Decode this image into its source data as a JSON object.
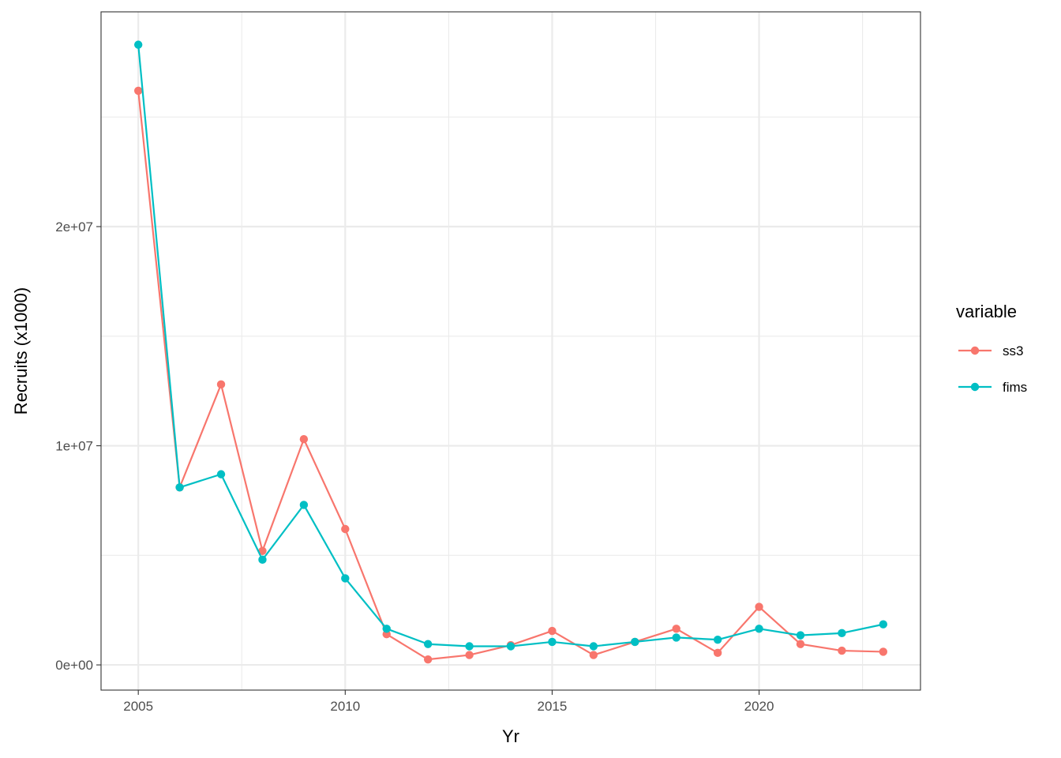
{
  "chart_data": {
    "type": "line",
    "xlabel": "Yr",
    "ylabel": "Recruits (x1000)",
    "xlim": [
      2004.1,
      2023.9
    ],
    "ylim": [
      -1150000,
      29800000
    ],
    "x_ticks": [
      2005,
      2010,
      2015,
      2020
    ],
    "x_tick_labels": [
      "2005",
      "2010",
      "2015",
      "2020"
    ],
    "x_minor_ticks": [
      2007.5,
      2012.5,
      2017.5,
      2022.5
    ],
    "y_ticks": [
      0,
      10000000,
      20000000
    ],
    "y_tick_labels": [
      "0e+00",
      "1e+07",
      "2e+07"
    ],
    "y_minor_ticks": [
      5000000,
      15000000,
      25000000
    ],
    "grid": true,
    "legend_title": "variable",
    "legend_position": "right",
    "x": [
      2005,
      2006,
      2007,
      2008,
      2009,
      2010,
      2011,
      2012,
      2013,
      2014,
      2015,
      2016,
      2017,
      2018,
      2019,
      2020,
      2021,
      2022,
      2023
    ],
    "series": [
      {
        "name": "ss3",
        "color": "#F8766D",
        "values": [
          26200000,
          8100000,
          12800000,
          5200000,
          10300000,
          6200000,
          1400000,
          250000,
          450000,
          900000,
          1550000,
          450000,
          1050000,
          1650000,
          550000,
          2650000,
          950000,
          650000,
          600000
        ]
      },
      {
        "name": "fims",
        "color": "#00BFC4",
        "values": [
          28300000,
          8100000,
          8700000,
          4800000,
          7300000,
          3950000,
          1650000,
          950000,
          850000,
          850000,
          1050000,
          850000,
          1050000,
          1250000,
          1150000,
          1650000,
          1350000,
          1450000,
          1850000
        ]
      }
    ]
  }
}
